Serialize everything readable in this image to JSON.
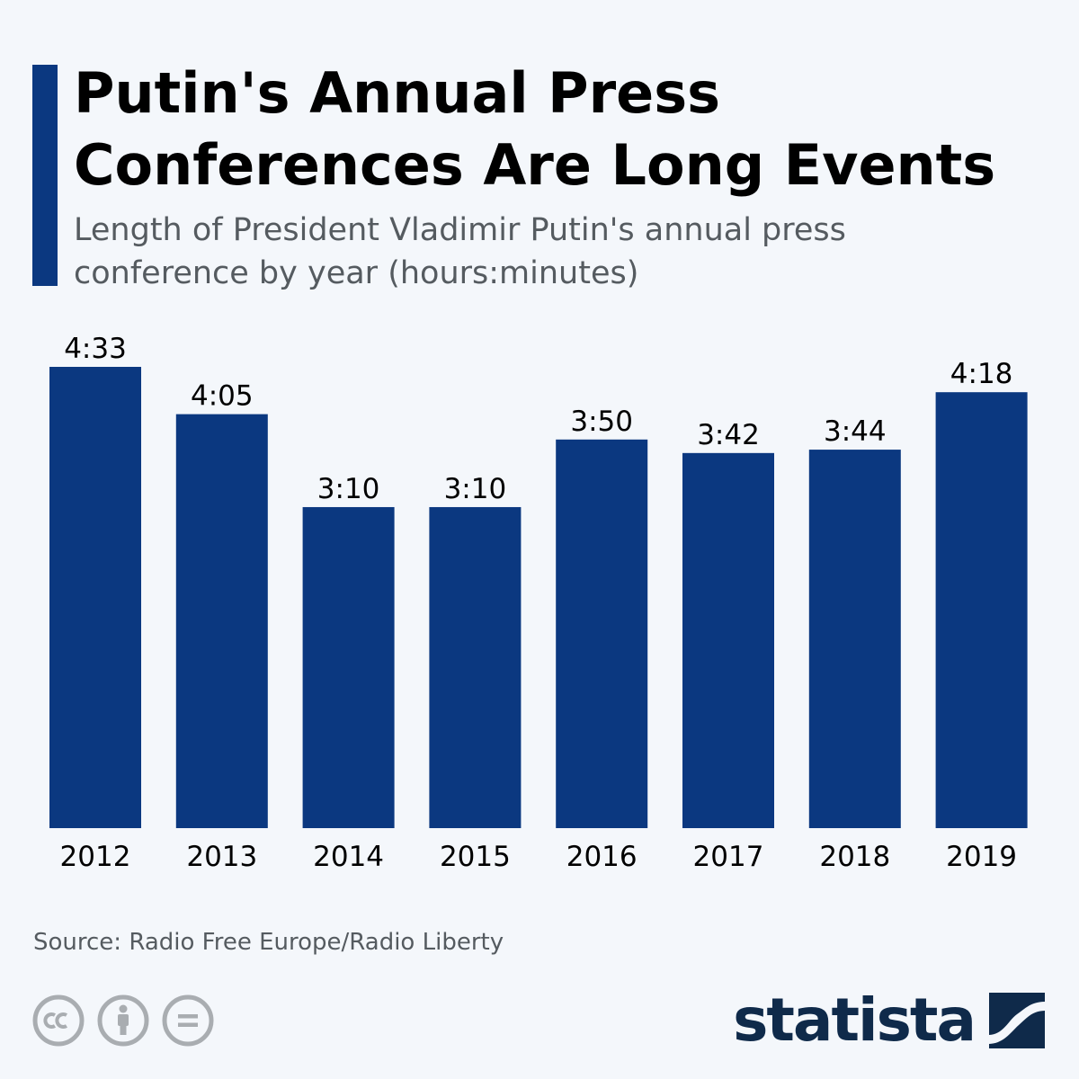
{
  "header": {
    "title": "Putin's Annual Press Conferences Are Long Events",
    "subtitle": "Length of President Vladimir Putin's annual press conference by year (hours:minutes)"
  },
  "colors": {
    "bar": "#0b3880",
    "accent": "#0b3880",
    "background": "#f4f7fb",
    "brand": "#0f2a4a"
  },
  "chart_data": {
    "type": "bar",
    "categories": [
      "2012",
      "2013",
      "2014",
      "2015",
      "2016",
      "2017",
      "2018",
      "2019"
    ],
    "values": [
      273,
      245,
      190,
      190,
      230,
      222,
      224,
      258
    ],
    "value_unit": "minutes",
    "data_labels": [
      "4:33",
      "4:05",
      "3:10",
      "3:10",
      "3:50",
      "3:42",
      "3:44",
      "4:18"
    ],
    "title": "Putin's Annual Press Conferences Are Long Events",
    "subtitle": "Length of President Vladimir Putin's annual press conference by year (hours:minutes)",
    "ylim": [
      0,
      273
    ],
    "grid": false,
    "legend": false
  },
  "footer": {
    "source": "Source: Radio Free Europe/Radio Liberty",
    "brand": "statista",
    "license_icons": [
      "creative-commons-icon",
      "attribution-icon",
      "no-derivatives-icon"
    ]
  }
}
